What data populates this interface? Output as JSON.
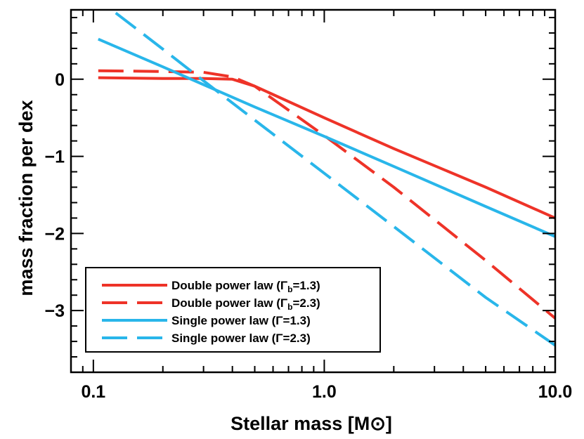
{
  "chart_data": {
    "type": "line",
    "xscale": "log",
    "xlim": [
      0.08,
      10.0
    ],
    "ylim": [
      -3.8,
      0.9
    ],
    "xticks": [
      0.1,
      1.0,
      10.0
    ],
    "xtick_labels": [
      "0.1",
      "1.0",
      "10.0"
    ],
    "yticks": [
      0,
      -1,
      -2,
      -3
    ],
    "ytick_labels": [
      "0",
      "−1",
      "−2",
      "−3"
    ],
    "xlabel": "Stellar mass [M⊙]",
    "ylabel": "mass fraction per dex",
    "legend_position": "bottom-left",
    "series": [
      {
        "name": "Double power law (Γb=1.3)",
        "legend_main": "Double power law (Γ",
        "legend_sub": "b",
        "legend_tail": "=1.3)",
        "color": "#ee3328",
        "dash": "solid",
        "x": [
          0.105,
          0.2,
          0.3,
          0.4,
          0.5,
          1.0,
          2.0,
          5.0,
          10.0
        ],
        "y": [
          0.02,
          0.01,
          0.01,
          0.0,
          -0.09,
          -0.5,
          -0.9,
          -1.4,
          -1.8
        ]
      },
      {
        "name": "Double power law (Γb=2.3)",
        "legend_main": "Double power law (Γ",
        "legend_sub": "b",
        "legend_tail": "=2.3)",
        "color": "#ee3328",
        "dash": "dashed",
        "x": [
          0.105,
          0.2,
          0.3,
          0.4,
          0.5,
          1.0,
          2.0,
          5.0,
          10.0
        ],
        "y": [
          0.11,
          0.1,
          0.09,
          0.03,
          -0.09,
          -0.73,
          -1.4,
          -2.35,
          -3.1
        ]
      },
      {
        "name": "Single power law (Γ=1.3)",
        "legend_main": "Single power law (Γ=1.3)",
        "legend_sub": "",
        "legend_tail": "",
        "color": "#29b6ea",
        "dash": "solid",
        "x": [
          0.105,
          0.2,
          0.3,
          0.5,
          1.0,
          2.0,
          5.0,
          10.0
        ],
        "y": [
          0.52,
          0.16,
          -0.07,
          -0.36,
          -0.74,
          -1.13,
          -1.65,
          -2.04
        ]
      },
      {
        "name": "Single power law (Γ=2.3)",
        "legend_main": "Single power law (Γ=2.3)",
        "legend_sub": "",
        "legend_tail": "",
        "color": "#29b6ea",
        "dash": "dashed",
        "x": [
          0.125,
          0.2,
          0.3,
          0.5,
          1.0,
          2.0,
          5.0,
          10.0
        ],
        "y": [
          0.86,
          0.39,
          -0.02,
          -0.53,
          -1.22,
          -1.91,
          -2.83,
          -3.45
        ]
      }
    ]
  }
}
